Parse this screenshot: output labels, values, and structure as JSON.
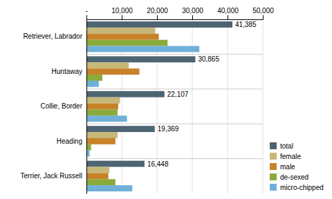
{
  "chart_data": {
    "type": "bar",
    "orientation": "horizontal",
    "categories": [
      "Retriever, Labrador",
      "Huntaway",
      "Collie, Border",
      "Heading",
      "Terrier, Jack Russell"
    ],
    "series": [
      {
        "name": "total",
        "color": "#4d6472",
        "values": [
          41385,
          30865,
          22107,
          19369,
          16448
        ],
        "data_labels": true,
        "value_labels": [
          "41,385",
          "30,865",
          "22,107",
          "19,369",
          "16,448"
        ]
      },
      {
        "name": "female",
        "color": "#c5b878",
        "values": [
          19500,
          12000,
          9500,
          8800,
          6500
        ]
      },
      {
        "name": "male",
        "color": "#c8822a",
        "values": [
          20500,
          15000,
          9000,
          8200,
          6200
        ]
      },
      {
        "name": "de-sexed",
        "color": "#8aaa3a",
        "values": [
          23000,
          4500,
          8800,
          1300,
          8200
        ]
      },
      {
        "name": "micro-chipped",
        "color": "#6fb0d8",
        "values": [
          32000,
          3500,
          11500,
          900,
          13000
        ]
      }
    ],
    "xlim": [
      0,
      50000
    ],
    "xticks": [
      {
        "value": 0,
        "label": "-"
      },
      {
        "value": 10000,
        "label": "10,000"
      },
      {
        "value": 20000,
        "label": "20,000"
      },
      {
        "value": 30000,
        "label": "30,000"
      },
      {
        "value": 40000,
        "label": "40,000"
      },
      {
        "value": 50000,
        "label": "50,000"
      }
    ],
    "grid": true,
    "legend": "lower right"
  }
}
